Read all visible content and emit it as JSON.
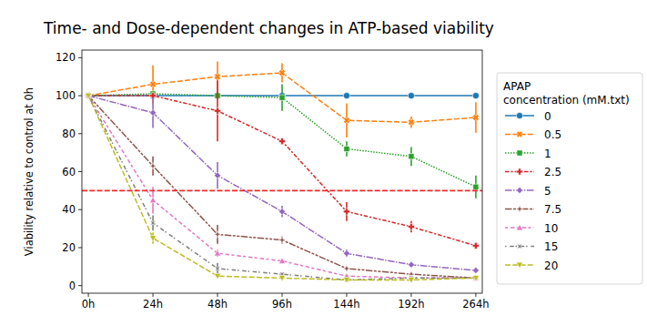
{
  "chart_data": {
    "type": "line",
    "title": "Time- and Dose-dependent changes in ATP-based viability",
    "y_label": "Viability relative to control at 0h",
    "legend_title": "APAP\nconcentration (mM.txt)",
    "legend": "right",
    "grid": false,
    "categories": [
      "0h",
      "24h",
      "48h",
      "96h",
      "144h",
      "192h",
      "264h"
    ],
    "ylim": [
      -4,
      124
    ],
    "yticks": [
      0,
      20,
      40,
      60,
      80,
      100,
      120
    ],
    "hlines": [
      {
        "value": 50,
        "color": "#ee2a2a",
        "line_style": "dashed"
      }
    ],
    "series": [
      {
        "name": "0",
        "color": "#1f77b4",
        "marker": "circle",
        "line_style": "solid",
        "values": [
          100,
          100,
          100,
          100,
          100,
          100,
          100
        ],
        "errors": [
          0,
          0,
          0,
          0,
          0,
          0,
          0
        ]
      },
      {
        "name": "0.5",
        "color": "#ff7f0e",
        "marker": "x",
        "line_style": "dashed",
        "values": [
          100,
          106,
          110,
          112,
          87,
          86,
          88.5
        ],
        "errors": [
          0,
          10,
          8,
          5,
          9,
          3,
          8
        ]
      },
      {
        "name": "1",
        "color": "#2ca02c",
        "marker": "square",
        "line_style": "dotted",
        "values": [
          100,
          101,
          100,
          99,
          72,
          68,
          52
        ],
        "errors": [
          0,
          1,
          2,
          7,
          4,
          5,
          6
        ]
      },
      {
        "name": "2.5",
        "color": "#d62728",
        "marker": "plus",
        "line_style": "dashdot",
        "values": [
          100,
          100,
          92,
          76,
          39,
          31,
          21
        ],
        "errors": [
          0,
          1,
          16,
          1,
          5,
          3,
          1
        ]
      },
      {
        "name": "5",
        "color": "#9467bd",
        "marker": "diamond",
        "line_style": "long-dashdot",
        "values": [
          100,
          91,
          58,
          39,
          17,
          11,
          8
        ],
        "errors": [
          0,
          8,
          7,
          3,
          2,
          1,
          1
        ]
      },
      {
        "name": "7.5",
        "color": "#8c564b",
        "marker": "star",
        "line_style": "dashdotdot",
        "values": [
          100,
          63,
          27,
          24,
          9,
          6,
          4
        ],
        "errors": [
          0,
          5,
          5,
          2,
          1,
          1,
          1
        ]
      },
      {
        "name": "10",
        "color": "#e377c2",
        "marker": "triangle-up",
        "line_style": "long-dashed",
        "values": [
          100,
          45,
          17,
          13,
          5,
          4,
          4
        ],
        "errors": [
          0,
          7,
          2,
          1,
          1,
          1,
          1
        ]
      },
      {
        "name": "15",
        "color": "#7f7f7f",
        "marker": "star-x",
        "line_style": "dotdash",
        "values": [
          100,
          33,
          9,
          6,
          3,
          4,
          4
        ],
        "errors": [
          0,
          4,
          3,
          1,
          0.5,
          1,
          1
        ]
      },
      {
        "name": "20",
        "color": "#bcbd22",
        "marker": "triangle-down",
        "line_style": "dashed",
        "values": [
          100,
          25,
          5,
          4,
          3,
          3,
          4
        ],
        "errors": [
          0,
          3,
          1,
          1,
          0.5,
          0.5,
          0.5
        ]
      }
    ]
  }
}
